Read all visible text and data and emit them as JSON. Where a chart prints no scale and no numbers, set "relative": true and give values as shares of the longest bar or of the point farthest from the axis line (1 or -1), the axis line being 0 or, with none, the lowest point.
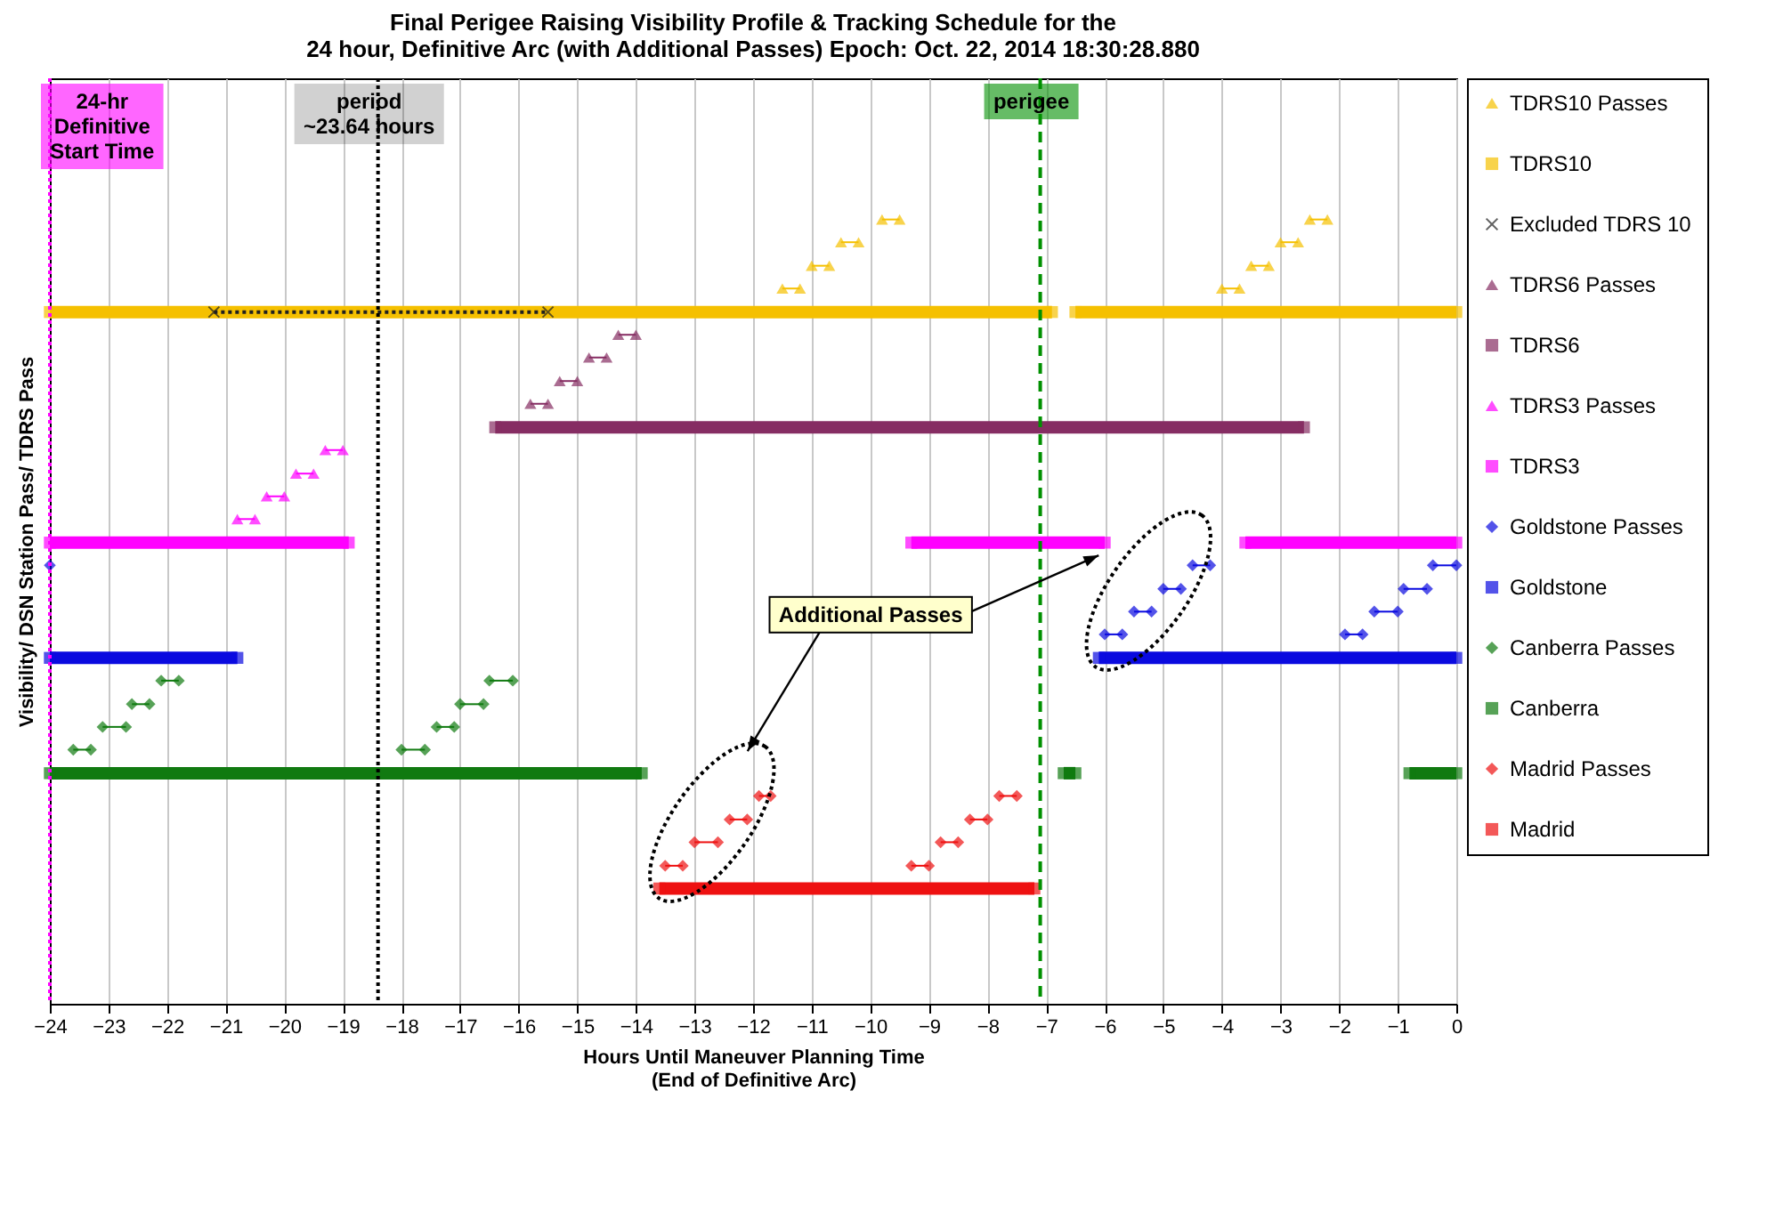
{
  "chart_data": {
    "type": "line",
    "title": "Final Perigee Raising Visibility Profile & Tracking Schedule for the\n24 hour, Definitive Arc (with Additional Passes)  Epoch: Oct. 22, 2014 18:30:28.880",
    "xlabel": "Hours Until Maneuver Planning Time\n(End of Definitive Arc)",
    "ylabel": "Visibility/ DSN Station Pass/ TDRS Pass",
    "relative": true,
    "xlim": [
      -24,
      0
    ],
    "xticks": [
      -24,
      -23,
      -22,
      -21,
      -20,
      -19,
      -18,
      -17,
      -16,
      -15,
      -14,
      -13,
      -12,
      -11,
      -10,
      -9,
      -8,
      -7,
      -6,
      -5,
      -4,
      -3,
      -2,
      -1,
      0
    ],
    "grid": "x",
    "legend": "right",
    "annotations": [
      "Additional Passes"
    ],
    "ref_lines": [
      {
        "axis": "x",
        "value": -24,
        "label": "24-hr\nDefinitive\nStart Time",
        "color": "#ff00ff",
        "line_style": "dotted"
      },
      {
        "axis": "x",
        "value": -18.4,
        "label": "period\n~23.64 hours",
        "color": "#000000",
        "line_style": "dotted"
      },
      {
        "axis": "x",
        "value": -7.1,
        "label": "perigee",
        "color": "#009000",
        "line_style": "dashed"
      }
    ],
    "series": [
      {
        "name": "TDRS10 Passes",
        "color": "#f5c000",
        "marker": "triangle",
        "x": [
          -11.5,
          -11.2,
          null,
          -11.0,
          -10.7,
          null,
          -10.5,
          -10.2,
          null,
          -9.8,
          -9.5,
          null,
          -4.0,
          -3.7,
          null,
          -3.5,
          -3.2,
          null,
          -3.0,
          -2.7,
          null,
          -2.5,
          -2.2
        ],
        "values": [
          0.912,
          0.912,
          null,
          0.941,
          0.941,
          null,
          0.971,
          0.971,
          null,
          1,
          1,
          null,
          0.912,
          0.912,
          null,
          0.941,
          0.941,
          null,
          0.971,
          0.971,
          null,
          1,
          1
        ]
      },
      {
        "name": "TDRS10",
        "color": "#f5c000",
        "marker": "square",
        "x": [
          -24,
          -6.9,
          null,
          -6.5,
          0
        ],
        "values": [
          0.882,
          0.882,
          null,
          0.882,
          0.882
        ]
      },
      {
        "name": "Excluded TDRS 10",
        "color": "#202020",
        "marker": "cross",
        "line_style": "dotted",
        "x": [
          -21.2,
          -15.5
        ],
        "values": [
          0.882,
          0.882
        ]
      },
      {
        "name": "TDRS6 Passes",
        "color": "#862d63",
        "marker": "triangle",
        "x": [
          -15.8,
          -15.5,
          null,
          -15.3,
          -15.0,
          null,
          -14.8,
          -14.5,
          null,
          -14.3,
          -14.0
        ],
        "values": [
          0.765,
          0.765,
          null,
          0.794,
          0.794,
          null,
          0.824,
          0.824,
          null,
          0.853,
          0.853
        ]
      },
      {
        "name": "TDRS6",
        "color": "#862d63",
        "marker": "square",
        "x": [
          -16.4,
          -2.6
        ],
        "values": [
          0.735,
          0.735
        ]
      },
      {
        "name": "TDRS3 Passes",
        "color": "#ff00ff",
        "marker": "triangle",
        "x": [
          -20.8,
          -20.5,
          null,
          -20.3,
          -20.0,
          null,
          -19.8,
          -19.5,
          null,
          -19.3,
          -19.0
        ],
        "values": [
          0.618,
          0.618,
          null,
          0.647,
          0.647,
          null,
          0.676,
          0.676,
          null,
          0.706,
          0.706
        ]
      },
      {
        "name": "TDRS3",
        "color": "#ff00ff",
        "marker": "square",
        "x": [
          -24,
          -18.9,
          null,
          -9.3,
          -6.0,
          null,
          -3.6,
          0
        ],
        "values": [
          0.588,
          0.588,
          null,
          0.588,
          0.588,
          null,
          0.588,
          0.588
        ]
      },
      {
        "name": "Goldstone Passes",
        "color": "#0a0adf",
        "marker": "diamond",
        "x": [
          -24,
          null,
          -6.0,
          -5.7,
          null,
          -5.5,
          -5.2,
          null,
          -5.0,
          -4.7,
          null,
          -4.5,
          -4.2,
          null,
          -1.9,
          -1.6,
          null,
          -1.4,
          -1.0,
          null,
          -0.9,
          -0.5,
          null,
          -0.4,
          0
        ],
        "values": [
          0.559,
          null,
          0.471,
          0.471,
          null,
          0.5,
          0.5,
          null,
          0.529,
          0.529,
          null,
          0.559,
          0.559,
          null,
          0.471,
          0.471,
          null,
          0.5,
          0.5,
          null,
          0.529,
          0.529,
          null,
          0.559,
          0.559
        ]
      },
      {
        "name": "Goldstone",
        "color": "#0a0adf",
        "marker": "square",
        "x": [
          -24,
          -20.8,
          null,
          -6.1,
          0
        ],
        "values": [
          0.441,
          0.441,
          null,
          0.441,
          0.441
        ]
      },
      {
        "name": "Canberra Passes",
        "color": "#107a10",
        "marker": "diamond",
        "x": [
          -23.6,
          -23.3,
          null,
          -23.1,
          -22.7,
          null,
          -22.6,
          -22.3,
          null,
          -22.1,
          -21.8,
          null,
          -18.0,
          -17.6,
          null,
          -17.4,
          -17.1,
          null,
          -17.0,
          -16.6,
          null,
          -16.5,
          -16.1
        ],
        "values": [
          0.324,
          0.324,
          null,
          0.353,
          0.353,
          null,
          0.382,
          0.382,
          null,
          0.412,
          0.412,
          null,
          0.324,
          0.324,
          null,
          0.353,
          0.353,
          null,
          0.382,
          0.382,
          null,
          0.412,
          0.412
        ]
      },
      {
        "name": "Canberra",
        "color": "#107a10",
        "marker": "square",
        "x": [
          -24,
          -13.9,
          null,
          -6.7,
          -6.5,
          null,
          -0.8,
          0
        ],
        "values": [
          0.294,
          0.294,
          null,
          0.294,
          0.294,
          null,
          0.294,
          0.294
        ]
      },
      {
        "name": "Madrid Passes",
        "color": "#ee1111",
        "marker": "diamond",
        "x": [
          -13.5,
          -13.2,
          null,
          -13.0,
          -12.6,
          null,
          -12.4,
          -12.1,
          null,
          -11.9,
          -11.7,
          null,
          -9.3,
          -9.0,
          null,
          -8.8,
          -8.5,
          null,
          -8.3,
          -8.0,
          null,
          -7.8,
          -7.5
        ],
        "values": [
          0.176,
          0.176,
          null,
          0.206,
          0.206,
          null,
          0.235,
          0.235,
          null,
          0.265,
          0.265,
          null,
          0.176,
          0.176,
          null,
          0.206,
          0.206,
          null,
          0.235,
          0.235,
          null,
          0.265,
          0.265
        ]
      },
      {
        "name": "Madrid",
        "color": "#ee1111",
        "marker": "square",
        "x": [
          -13.6,
          -7.2
        ],
        "values": [
          0.147,
          0.147
        ]
      }
    ]
  }
}
